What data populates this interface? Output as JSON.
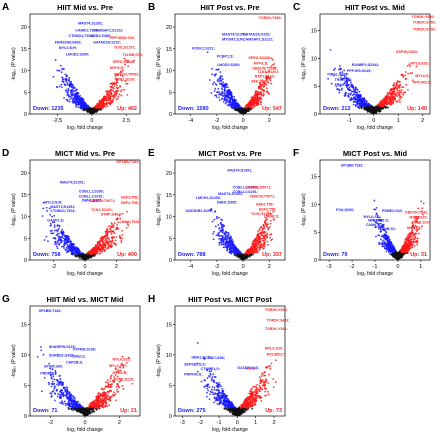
{
  "colors": {
    "down": "#1a1aff",
    "up": "#ff1a1a",
    "ns": "#111111"
  },
  "chart_data": [
    {
      "letter": "A",
      "type": "scatter",
      "title": "HIIT Mid vs. Pre",
      "xlabel": "log₂ fold change",
      "ylabel": "-log₁₀ (P value)",
      "xticks": [
        -2.5,
        0,
        2.5
      ],
      "yticks": [
        0,
        5,
        10,
        15,
        20
      ],
      "xlim": [
        -4.5,
        3.5
      ],
      "ylim": [
        0,
        23
      ],
      "down_label": "Down: 1235",
      "up_label": "Up: 462",
      "labels": [
        {
          "text": "MAST4;S1351;",
          "x": -1.0,
          "y": 20.6,
          "color": "down"
        },
        {
          "text": "CAMK2;T336;",
          "x": -1.2,
          "y": 19.0,
          "color": "down"
        },
        {
          "text": "CAMSAP1;S1122;",
          "x": 0.1,
          "y": 19.0,
          "color": "down"
        },
        {
          "text": "CTNND1;T304;",
          "x": -1.7,
          "y": 17.7,
          "color": "down"
        },
        {
          "text": "DBN1;S385;",
          "x": -0.1,
          "y": 17.7,
          "color": "down"
        },
        {
          "text": "FAM193B;S660;",
          "x": -2.7,
          "y": 16.2,
          "color": "down"
        },
        {
          "text": "GATAD2A;S152;",
          "x": 0.1,
          "y": 16.2,
          "color": "down"
        },
        {
          "text": "MYL6;S;R;",
          "x": -2.4,
          "y": 14.9,
          "color": "down"
        },
        {
          "text": "LMOD2;S300;",
          "x": -1.9,
          "y": 13.4,
          "color": "down"
        },
        {
          "text": "PPP1R3A;S46;",
          "x": 1.3,
          "y": 17.2,
          "color": "up"
        },
        {
          "text": "TLN1;S1201;",
          "x": 1.6,
          "y": 15.1,
          "color": "up"
        },
        {
          "text": "TXLNB;S75;",
          "x": 2.2,
          "y": 13.3,
          "color": "up"
        },
        {
          "text": "SPEG;S2428;",
          "x": 1.5,
          "y": 11.7,
          "color": "up"
        },
        {
          "text": "MYH1;S;",
          "x": 1.3,
          "y": 10.3,
          "color": "up"
        },
        {
          "text": "OBSCN;T5082;",
          "x": 1.6,
          "y": 8.9,
          "color": "up"
        },
        {
          "text": "RTP1;S120;",
          "x": 1.7,
          "y": 7.7,
          "color": "up"
        }
      ]
    },
    {
      "letter": "B",
      "type": "scatter",
      "title": "HIIT Post vs. Pre",
      "xlabel": "log₂ fold change",
      "ylabel": "-log₁₀ (P value)",
      "xticks": [
        -4,
        -2,
        0,
        2
      ],
      "yticks": [
        0,
        5,
        10,
        15,
        20
      ],
      "xlim": [
        -5.2,
        3.2
      ],
      "ylim": [
        0,
        23
      ],
      "down_label": "Down: 1580",
      "up_label": "Up: 547",
      "labels": [
        {
          "text": "TOR2K;Y540;",
          "x": 1.2,
          "y": 21.9,
          "color": "up"
        },
        {
          "text": "MAST4;S1351;",
          "x": -1.6,
          "y": 18.0,
          "color": "down"
        },
        {
          "text": "GATAD2A;S152;",
          "x": 0.0,
          "y": 18.0,
          "color": "down"
        },
        {
          "text": "MYOM1;S;R;",
          "x": -1.6,
          "y": 16.9,
          "color": "down"
        },
        {
          "text": "CAMSAP1;S1122;",
          "x": 0.0,
          "y": 16.9,
          "color": "down"
        },
        {
          "text": "FOXK1;S221;",
          "x": -3.9,
          "y": 14.8,
          "color": "down"
        },
        {
          "text": "LMOD2;S300;",
          "x": -2.0,
          "y": 11.0,
          "color": "down"
        },
        {
          "text": "PCBP1;S;",
          "x": -2.0,
          "y": 13.0,
          "color": "down"
        },
        {
          "text": "SPEG;S2428;",
          "x": 0.4,
          "y": 12.6,
          "color": "up"
        },
        {
          "text": "MYH1;S;",
          "x": 0.8,
          "y": 11.4,
          "color": "up"
        },
        {
          "text": "OBSCN;T5082;",
          "x": 0.7,
          "y": 10.2,
          "color": "up"
        },
        {
          "text": "RTP1;S120;",
          "x": 0.9,
          "y": 8.4,
          "color": "up"
        },
        {
          "text": "ZAK;S388;",
          "x": 0.6,
          "y": 7.2,
          "color": "up"
        },
        {
          "text": "TLN1;S1201;",
          "x": 1.1,
          "y": 9.4,
          "color": "up"
        }
      ]
    },
    {
      "letter": "C",
      "type": "scatter",
      "title": "HIIT Post vs. Mid",
      "xlabel": "log₂ fold change",
      "ylabel": "-log₁₀ (P value)",
      "xticks": [
        -1,
        0,
        1,
        2
      ],
      "yticks": [
        0,
        5,
        10,
        15
      ],
      "xlim": [
        -2.2,
        2.3
      ],
      "ylim": [
        0,
        18
      ],
      "down_label": "Down: 212",
      "up_label": "Up: 140",
      "labels": [
        {
          "text": "TOR2K;Y540;",
          "x": 1.55,
          "y": 17.3,
          "color": "up"
        },
        {
          "text": "TOR2K;S452;",
          "x": 1.6,
          "y": 16.3,
          "color": "up"
        },
        {
          "text": "TOR2K;S453;",
          "x": 1.6,
          "y": 15.0,
          "color": "up"
        },
        {
          "text": "USP46;S403;",
          "x": 0.9,
          "y": 11.0,
          "color": "up"
        },
        {
          "text": "MYL6;S20;",
          "x": 1.5,
          "y": 8.9,
          "color": "up"
        },
        {
          "text": "RANBP2;S2342;",
          "x": -0.9,
          "y": 8.6,
          "color": "down"
        },
        {
          "text": "PPP1R3;S245;",
          "x": -1.1,
          "y": 7.6,
          "color": "down"
        },
        {
          "text": "PIRS1;S236;",
          "x": -1.9,
          "y": 6.9,
          "color": "down"
        },
        {
          "text": "TRIM72;S;",
          "x": -1.6,
          "y": 5.9,
          "color": "down"
        },
        {
          "text": "FOXK;S;",
          "x": -1.6,
          "y": 5.0,
          "color": "down"
        },
        {
          "text": "MYL6;S;",
          "x": 1.7,
          "y": 6.7,
          "color": "up"
        },
        {
          "text": "PPP1R3;S;",
          "x": 1.6,
          "y": 5.5,
          "color": "up"
        }
      ]
    },
    {
      "letter": "D",
      "type": "scatter",
      "title": "MICT Mid vs. Pre",
      "xlabel": "log₂ fold change",
      "ylabel": "-log₁₀ (P value)",
      "xticks": [
        -2,
        0,
        2
      ],
      "yticks": [
        0,
        5,
        10,
        15,
        20
      ],
      "xlim": [
        -3.5,
        3.5
      ],
      "ylim": [
        0,
        23
      ],
      "down_label": "Down: 758",
      "up_label": "Up: 400",
      "labels": [
        {
          "text": "GP1BB;T182;",
          "x": 2.0,
          "y": 22.3,
          "color": "up"
        },
        {
          "text": "MAST4;S1351;",
          "x": -1.6,
          "y": 17.6,
          "color": "down"
        },
        {
          "text": "COBLL1;S289;",
          "x": -0.4,
          "y": 15.5,
          "color": "down"
        },
        {
          "text": "COBLL1;S291;",
          "x": -0.4,
          "y": 14.4,
          "color": "down"
        },
        {
          "text": "DBN1;S385;",
          "x": -0.2,
          "y": 13.4,
          "color": "down"
        },
        {
          "text": "MYL6;S;R;",
          "x": -2.6,
          "y": 13.0,
          "color": "down"
        },
        {
          "text": "MAST4;S1351;",
          "x": -2.2,
          "y": 12.0,
          "color": "down"
        },
        {
          "text": "CTNND1;T304;",
          "x": -2.2,
          "y": 11.0,
          "color": "down"
        },
        {
          "text": "GAXP1;S;",
          "x": -2.4,
          "y": 8.8,
          "color": "down"
        },
        {
          "text": "OBSCN;T5071;",
          "x": 0.3,
          "y": 13.3,
          "color": "up"
        },
        {
          "text": "TLN1;S1201;",
          "x": 0.4,
          "y": 11.3,
          "color": "up"
        },
        {
          "text": "STMP;S48;",
          "x": 1.0,
          "y": 10.2,
          "color": "up"
        },
        {
          "text": "EEF2;T56;",
          "x": 2.3,
          "y": 14.1,
          "color": "up"
        },
        {
          "text": "EEF2;T58;",
          "x": 2.3,
          "y": 12.9,
          "color": "up"
        },
        {
          "text": "LMNA;T424;",
          "x": 2.2,
          "y": 8.5,
          "color": "up"
        }
      ]
    },
    {
      "letter": "E",
      "type": "scatter",
      "title": "MICT Post vs. Pre",
      "xlabel": "log₂ fold change",
      "ylabel": "-log₁₀ (P value)",
      "xticks": [
        -4,
        -2,
        0,
        2
      ],
      "yticks": [
        0,
        5,
        10,
        15,
        20
      ],
      "xlim": [
        -5.2,
        3.2
      ],
      "ylim": [
        0,
        23
      ],
      "down_label": "Down: 788",
      "up_label": "Up: 337",
      "labels": [
        {
          "text": "MAST4;S1351;",
          "x": -1.2,
          "y": 20.3,
          "color": "down"
        },
        {
          "text": "COBLL1;S289;",
          "x": -0.8,
          "y": 16.4,
          "color": "down"
        },
        {
          "text": "COBLL1;S291;",
          "x": -0.8,
          "y": 15.4,
          "color": "down"
        },
        {
          "text": "MAST4;S1351;",
          "x": -1.9,
          "y": 15.0,
          "color": "down"
        },
        {
          "text": "LMCH1;S1256;",
          "x": -3.6,
          "y": 14.0,
          "color": "down"
        },
        {
          "text": "UNC5DB1;S200;",
          "x": -4.4,
          "y": 11.0,
          "color": "down"
        },
        {
          "text": "DBN1;S385;",
          "x": -2.0,
          "y": 13.0,
          "color": "down"
        },
        {
          "text": "OBSCN;S5071;",
          "x": 0.2,
          "y": 16.4,
          "color": "up"
        },
        {
          "text": "OBSCN;T5071;",
          "x": 0.5,
          "y": 14.4,
          "color": "up"
        },
        {
          "text": "EEF2;T56;",
          "x": 1.0,
          "y": 12.5,
          "color": "up"
        },
        {
          "text": "EEF2;T58;",
          "x": 1.2,
          "y": 11.4,
          "color": "up"
        },
        {
          "text": "LMNA;S;",
          "x": 1.6,
          "y": 9.8,
          "color": "up"
        },
        {
          "text": "TLN1;S1201;",
          "x": 0.6,
          "y": 10.3,
          "color": "up"
        }
      ]
    },
    {
      "letter": "F",
      "type": "scatter",
      "title": "MICT Post vs. Mid",
      "xlabel": "log₂ fold change",
      "ylabel": "-log₁₀ (P value)",
      "xticks": [
        -3,
        -2,
        -1,
        0,
        1
      ],
      "yticks": [
        0,
        5,
        10,
        15
      ],
      "xlim": [
        -3.4,
        1.4
      ],
      "ylim": [
        0,
        18
      ],
      "down_label": "Down: 79",
      "up_label": "Up: 31",
      "labels": [
        {
          "text": "GP1BB;T182;",
          "x": -2.5,
          "y": 16.8,
          "color": "down"
        },
        {
          "text": "FOA;S200;",
          "x": -2.7,
          "y": 8.8,
          "color": "down"
        },
        {
          "text": "PSME2;S42;",
          "x": -0.7,
          "y": 8.6,
          "color": "down"
        },
        {
          "text": "MYL6;S;",
          "x": -1.5,
          "y": 7.6,
          "color": "down"
        },
        {
          "text": "MR2EL78;S;",
          "x": -1.3,
          "y": 6.9,
          "color": "down"
        },
        {
          "text": "CAMK;S;",
          "x": -1.4,
          "y": 6.1,
          "color": "down"
        },
        {
          "text": "TXLNB;S1;",
          "x": -0.9,
          "y": 5.4,
          "color": "down"
        },
        {
          "text": "OBSCN;T541;",
          "x": 0.3,
          "y": 8.4,
          "color": "up"
        },
        {
          "text": "MYL6;S20;",
          "x": 0.5,
          "y": 7.5,
          "color": "up"
        },
        {
          "text": "MYL6;S19;",
          "x": 0.6,
          "y": 6.6,
          "color": "up"
        },
        {
          "text": "MYH1;S;",
          "x": 0.4,
          "y": 5.6,
          "color": "up"
        }
      ]
    },
    {
      "letter": "G",
      "type": "scatter",
      "title": "HIIT Mid vs. MICT Mid",
      "xlabel": "log₂ fold change",
      "ylabel": "-log₁₀ (P value)",
      "xticks": [
        -2,
        0,
        2
      ],
      "yticks": [
        0,
        5,
        10,
        15
      ],
      "xlim": [
        -3.2,
        3.2
      ],
      "ylim": [
        0,
        18
      ],
      "down_label": "Down: 71",
      "up_label": "Up: 21",
      "labels": [
        {
          "text": "GP1BB;T182;",
          "x": -2.7,
          "y": 17.0,
          "color": "down"
        },
        {
          "text": "SHARPIN;S165;",
          "x": -2.1,
          "y": 11.1,
          "color": "down"
        },
        {
          "text": "SORBS2;S429;",
          "x": -2.1,
          "y": 9.7,
          "color": "down"
        },
        {
          "text": "GPSM;S60;",
          "x": -2.4,
          "y": 7.9,
          "color": "down"
        },
        {
          "text": "PRDM;S;",
          "x": -2.6,
          "y": 6.8,
          "color": "down"
        },
        {
          "text": "PTPRA;S198;",
          "x": -0.7,
          "y": 10.7,
          "color": "down"
        },
        {
          "text": "CNN2;S;",
          "x": -0.8,
          "y": 9.6,
          "color": "down"
        },
        {
          "text": "CAPZB;S;",
          "x": -1.1,
          "y": 8.6,
          "color": "down"
        },
        {
          "text": "MYL6;S20;",
          "x": 1.6,
          "y": 9.1,
          "color": "up"
        },
        {
          "text": "MYL6;S17;",
          "x": 1.4,
          "y": 8.0,
          "color": "up"
        },
        {
          "text": "MYH1;S;",
          "x": 1.6,
          "y": 6.9,
          "color": "up"
        },
        {
          "text": "RTP1;S120;",
          "x": 1.7,
          "y": 5.8,
          "color": "up"
        }
      ]
    },
    {
      "letter": "H",
      "type": "scatter",
      "title": "HIIT Post vs. MICT Post",
      "xlabel": "log₂ fold change",
      "ylabel": "-log₁₀ (P value)",
      "xticks": [
        -3,
        -2,
        -1,
        0,
        1,
        2
      ],
      "yticks": [
        0,
        5,
        10,
        15
      ],
      "xlim": [
        -3.4,
        2.6
      ],
      "ylim": [
        0,
        18
      ],
      "down_label": "Down: 275",
      "up_label": "Up: 73",
      "labels": [
        {
          "text": "TOR2K;Y540;",
          "x": 1.5,
          "y": 17.2,
          "color": "up"
        },
        {
          "text": "TOR2K;S452;",
          "x": 1.6,
          "y": 15.5,
          "color": "up"
        },
        {
          "text": "TOR2K;Y541;",
          "x": 1.5,
          "y": 14.1,
          "color": "up"
        },
        {
          "text": "HBA1;S132;",
          "x": -2.5,
          "y": 9.4,
          "color": "down"
        },
        {
          "text": "GAC;S88;",
          "x": -1.6,
          "y": 9.3,
          "color": "down"
        },
        {
          "text": "SEPSECS;S;",
          "x": -2.9,
          "y": 8.3,
          "color": "down"
        },
        {
          "text": "CTNND1;S;",
          "x": -2.0,
          "y": 7.5,
          "color": "down"
        },
        {
          "text": "PRPF40;S;",
          "x": -2.9,
          "y": 6.6,
          "color": "down"
        },
        {
          "text": "MYL6;S20;",
          "x": 1.5,
          "y": 10.9,
          "color": "up"
        },
        {
          "text": "MYL6;S17;",
          "x": 1.6,
          "y": 9.9,
          "color": "up"
        },
        {
          "text": "GATAD2A;S;",
          "x": 0.0,
          "y": 7.7,
          "color": "down"
        },
        {
          "text": "ZAK;S;",
          "x": 0.4,
          "y": 7.6,
          "color": "up"
        }
      ]
    }
  ]
}
